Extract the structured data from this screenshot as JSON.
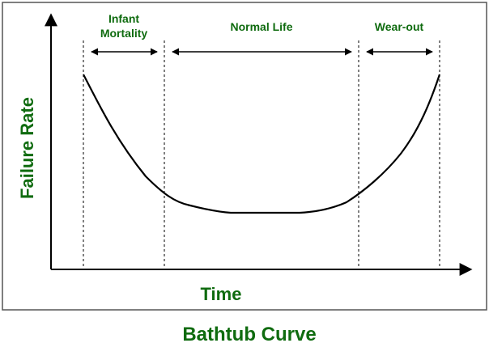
{
  "diagram": {
    "caption": "Bathtub Curve",
    "y_axis_label": "Failure Rate",
    "x_axis_label": "Time",
    "regions": [
      {
        "label_line1": "Infant",
        "label_line2": "Mortality"
      },
      {
        "label_line1": "Normal Life",
        "label_line2": ""
      },
      {
        "label_line1": "Wear-out",
        "label_line2": ""
      }
    ]
  },
  "colors": {
    "label_green": "#0f6b0f",
    "line": "#000000",
    "frame": "#555555"
  }
}
